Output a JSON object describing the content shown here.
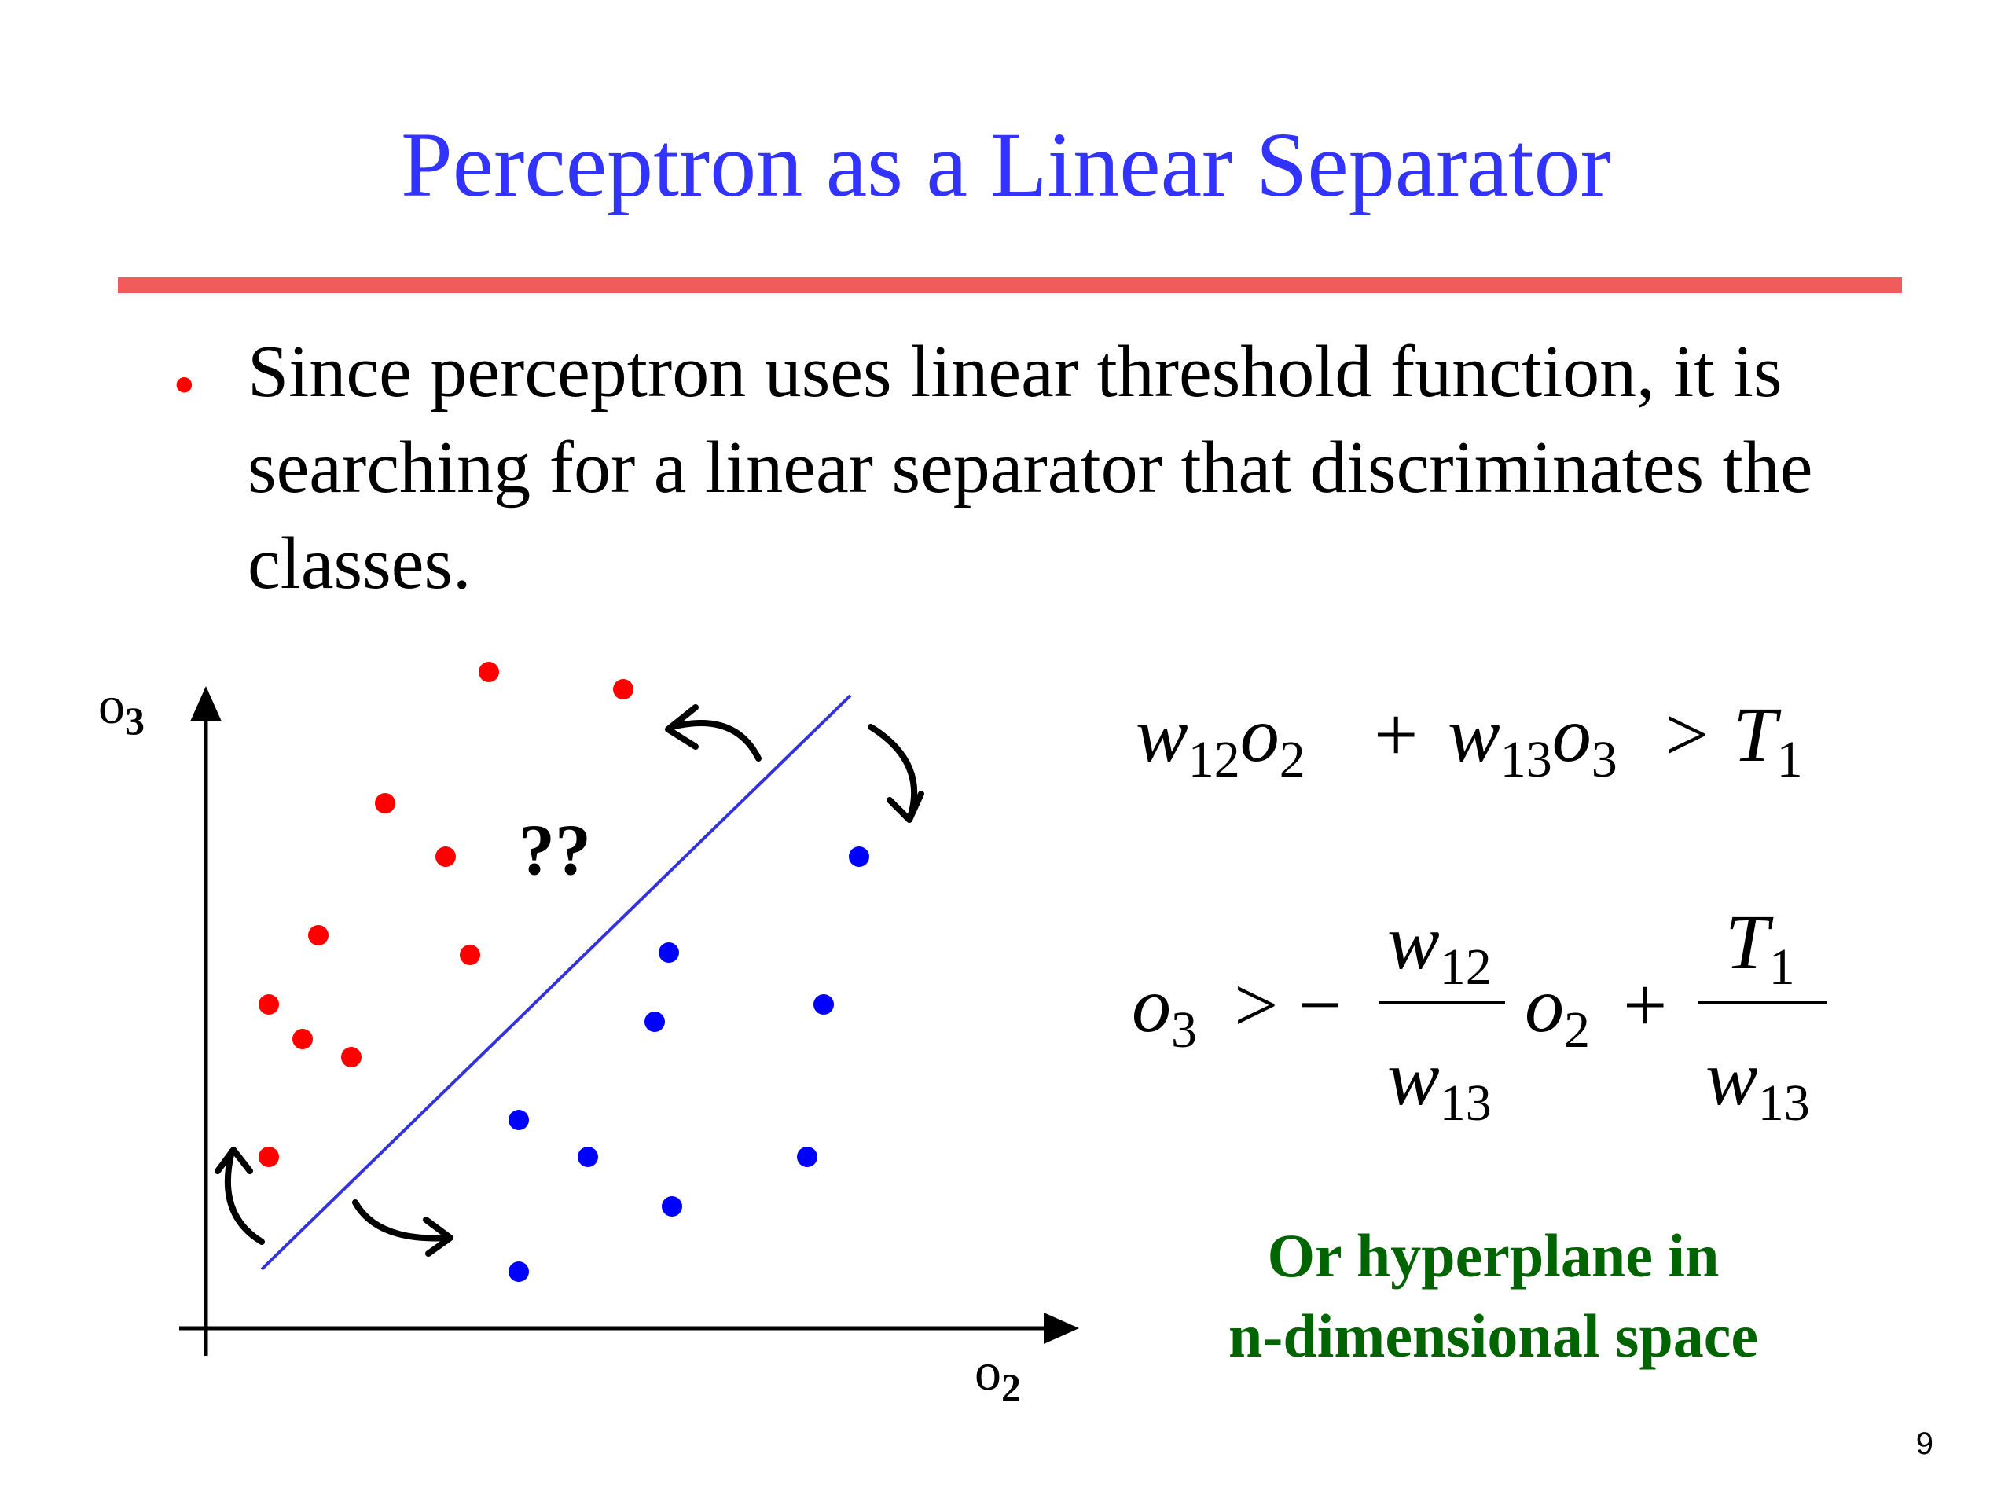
{
  "slide": {
    "title": "Perceptron as a Linear Separator",
    "bullet_lines": [
      "Since perceptron uses linear threshold function, it is",
      "searching for a linear separator that discriminates the",
      "classes."
    ],
    "note_lines": [
      "Or hyperplane in",
      "n-dimensional space"
    ],
    "page_number": "9"
  },
  "colors": {
    "title": "#3333ff",
    "rule": "#f15b5b",
    "bullet": "#ff0000",
    "class_a": "#ff0000",
    "class_b": "#0000ff",
    "separator": "#3333dd",
    "note": "#006400"
  },
  "diagram": {
    "x_axis_label": "o",
    "x_axis_sub": "2",
    "y_axis_label": "o",
    "y_axis_sub": "3",
    "question": "??",
    "icons": [
      "curved-arrow-icon",
      "curved-arrow-icon",
      "curved-arrow-icon",
      "curved-arrow-icon"
    ]
  },
  "equations": {
    "eq1": {
      "w12": "w",
      "w12_sub": "12",
      "o2": "o",
      "o2_sub": "2",
      "plus": "+",
      "w13": "w",
      "w13_sub": "13",
      "o3": "o",
      "o3_sub": "3",
      "gt": ">",
      "T": "T",
      "T_sub": "1"
    },
    "eq2": {
      "o3": "o",
      "o3_sub": "3",
      "gt_minus": "> −",
      "num1": "w",
      "num1_sub": "12",
      "den1": "w",
      "den1_sub": "13",
      "o2": "o",
      "o2_sub": "2",
      "plus": "+",
      "num2": "T",
      "num2_sub": "1",
      "den2": "w",
      "den2_sub": "13"
    }
  }
}
